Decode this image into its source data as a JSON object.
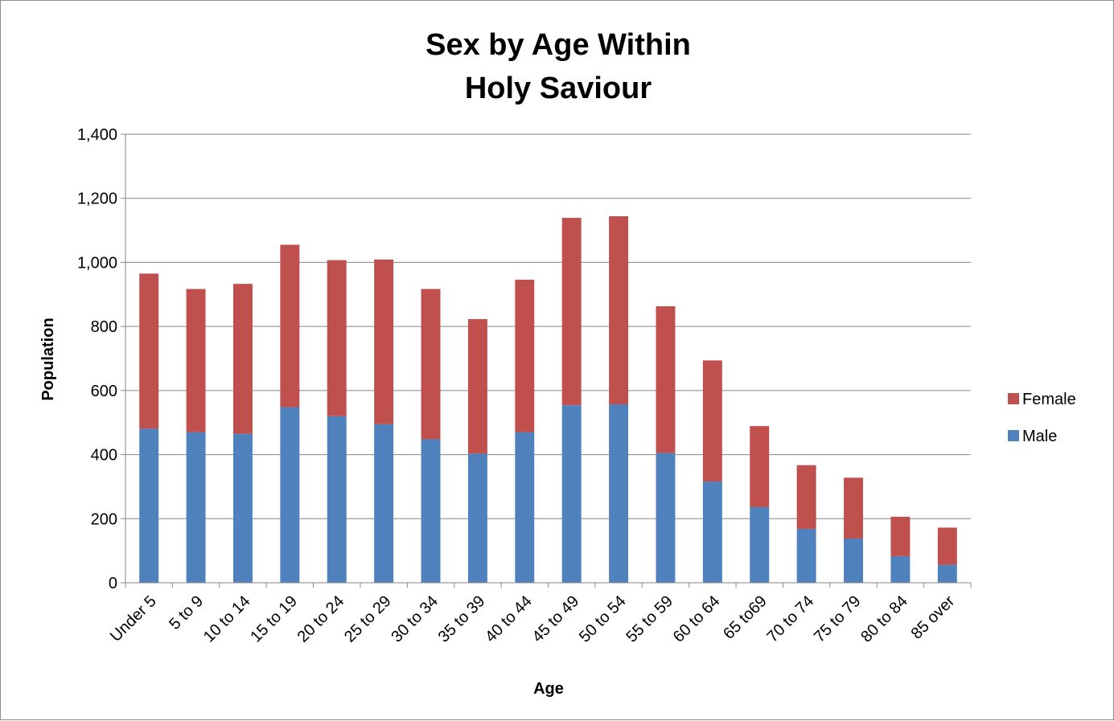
{
  "chart_data": {
    "type": "bar",
    "stacked": true,
    "title_lines": [
      "Sex by Age Within",
      "Holy Saviour"
    ],
    "xlabel": "Age",
    "ylabel": "Population",
    "ylim": [
      0,
      1400
    ],
    "y_ticks": [
      0,
      200,
      400,
      600,
      800,
      1000,
      1200,
      1400
    ],
    "y_tick_labels": [
      "0",
      "200",
      "400",
      "600",
      "800",
      "1,000",
      "1,200",
      "1,400"
    ],
    "grid": true,
    "legend_position": "right",
    "categories": [
      "Under 5",
      "5 to 9",
      "10 to 14",
      "15 to 19",
      "20 to 24",
      "25 to 29",
      "30 to 34",
      "35 to 39",
      "40 to 44",
      "45 to 49",
      "50 to 54",
      "55 to 59",
      "60 to 64",
      "65 to69",
      "70 to 74",
      "75 to 79",
      "80 to 84",
      "85 over"
    ],
    "series": [
      {
        "name": "Male",
        "color": "#4f81bd",
        "values": [
          481,
          470,
          465,
          548,
          520,
          495,
          448,
          403,
          470,
          554,
          557,
          405,
          316,
          236,
          168,
          138,
          83,
          56
        ]
      },
      {
        "name": "Female",
        "color": "#c0504d",
        "values": [
          484,
          447,
          468,
          507,
          487,
          514,
          469,
          420,
          476,
          585,
          587,
          458,
          378,
          253,
          199,
          190,
          123,
          116
        ]
      }
    ],
    "legend_order": [
      "Female",
      "Male"
    ]
  }
}
